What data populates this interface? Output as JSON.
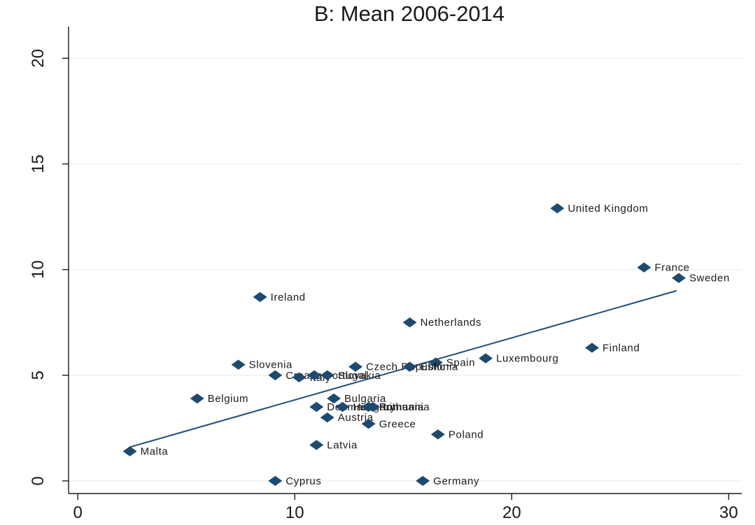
{
  "chart_data": {
    "type": "scatter",
    "title": "B: Mean 2006-2014",
    "xlabel": "",
    "ylabel": "",
    "xlim": [
      -0.2,
      30.6
    ],
    "ylim": [
      -0.4,
      21.5
    ],
    "xticks": [
      0,
      10,
      20,
      30
    ],
    "yticks": [
      0,
      5,
      10,
      15,
      20
    ],
    "grid": true,
    "colors": {
      "marker": "#1f4a70",
      "fit_line": "#1f4e79",
      "grid": "#e6eaea"
    },
    "points": [
      {
        "label": "United Kingdom",
        "x": 22.1,
        "y": 12.9
      },
      {
        "label": "France",
        "x": 26.1,
        "y": 10.1
      },
      {
        "label": "Sweden",
        "x": 27.7,
        "y": 9.6
      },
      {
        "label": "Ireland",
        "x": 8.4,
        "y": 8.7
      },
      {
        "label": "Netherlands",
        "x": 15.3,
        "y": 7.5
      },
      {
        "label": "Finland",
        "x": 23.7,
        "y": 6.3
      },
      {
        "label": "Luxembourg",
        "x": 18.8,
        "y": 5.8
      },
      {
        "label": "Spain",
        "x": 16.5,
        "y": 5.6
      },
      {
        "label": "Czech Republic",
        "x": 12.8,
        "y": 5.4
      },
      {
        "label": "Estonia",
        "x": 15.3,
        "y": 5.4
      },
      {
        "label": "Slovenia",
        "x": 7.4,
        "y": 5.5
      },
      {
        "label": "Croatia",
        "x": 9.1,
        "y": 5.0
      },
      {
        "label": "Italy",
        "x": 10.2,
        "y": 4.9
      },
      {
        "label": "Portugal",
        "x": 10.9,
        "y": 5.0
      },
      {
        "label": "Slovakia",
        "x": 11.5,
        "y": 5.0
      },
      {
        "label": "Belgium",
        "x": 5.5,
        "y": 3.9
      },
      {
        "label": "Bulgaria",
        "x": 11.8,
        "y": 3.9
      },
      {
        "label": "Denmark",
        "x": 11.0,
        "y": 3.5
      },
      {
        "label": "Hungary",
        "x": 12.2,
        "y": 3.5
      },
      {
        "label": "Romania",
        "x": 13.4,
        "y": 3.5
      },
      {
        "label": "Lithuania",
        "x": 13.6,
        "y": 3.5
      },
      {
        "label": "Austria",
        "x": 11.5,
        "y": 3.0
      },
      {
        "label": "Greece",
        "x": 13.4,
        "y": 2.7
      },
      {
        "label": "Poland",
        "x": 16.6,
        "y": 2.2
      },
      {
        "label": "Latvia",
        "x": 11.0,
        "y": 1.7
      },
      {
        "label": "Malta",
        "x": 2.4,
        "y": 1.4
      },
      {
        "label": "Cyprus",
        "x": 9.1,
        "y": 0.0
      },
      {
        "label": "Germany",
        "x": 15.9,
        "y": 0.0
      }
    ],
    "fit_line": {
      "x": [
        2.4,
        27.6
      ],
      "y": [
        1.6,
        9.0
      ]
    }
  }
}
